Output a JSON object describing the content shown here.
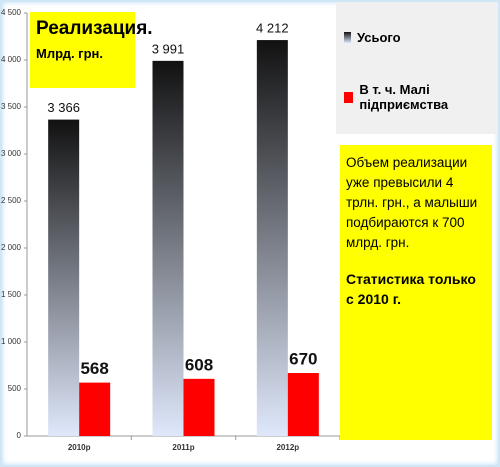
{
  "chart_data": {
    "type": "bar",
    "title": "Реализация.",
    "subtitle": "Млрд. грн.",
    "categories": [
      "2010р",
      "2011р",
      "2012р"
    ],
    "series": [
      {
        "name": "Усього",
        "color": "#111111",
        "values": [
          3366,
          3991,
          4212
        ],
        "value_labels": [
          "3 366",
          "3 991",
          "4 212"
        ]
      },
      {
        "name": "В т. ч. Малі підприємства",
        "color": "#ff0000",
        "values": [
          568,
          608,
          670
        ]
      }
    ],
    "ylim": [
      0,
      4500
    ],
    "yticks": [
      0,
      500,
      {
        "value": 1000,
        "label": "1 000"
      },
      {
        "value": 1500,
        "label": "1 500"
      },
      {
        "value": 2000,
        "label": "2 000"
      },
      {
        "value": 2500,
        "label": "2 500"
      },
      {
        "value": 3000,
        "label": "3 000"
      },
      {
        "value": 3500,
        "label": "3 500"
      },
      {
        "value": 4000,
        "label": "4 000"
      },
      {
        "value": 4500,
        "label": "4 500"
      }
    ],
    "annotations": [
      "Объем реализации уже превысили 4 трлн. грн., а малыши подбираются к 700 млрд. грн.",
      "Статистика только с 2010 г."
    ]
  }
}
